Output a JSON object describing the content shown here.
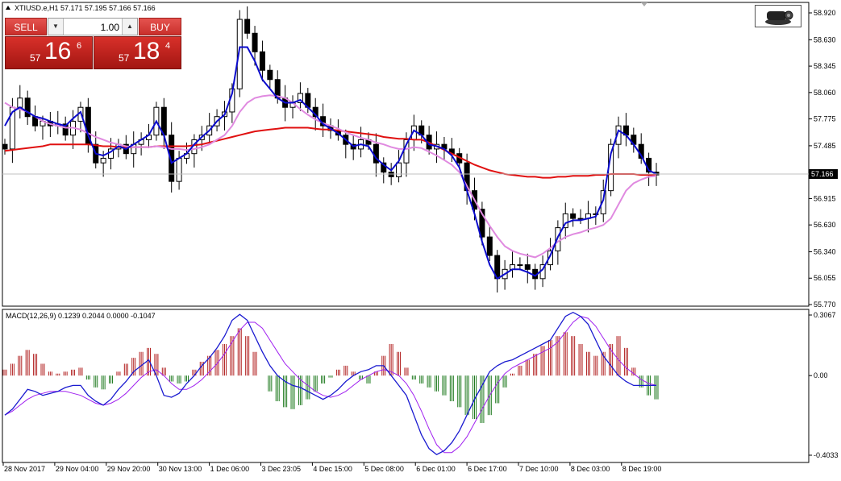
{
  "main_chart": {
    "title": "XTIUSD.e,H1  57.171 57.195 57.166 57.166",
    "y_ticks": [
      "58.920",
      "58.630",
      "58.345",
      "58.060",
      "57.775",
      "57.485",
      "56.915",
      "56.630",
      "56.340",
      "56.055",
      "55.770"
    ],
    "current_price_label": "57.166",
    "colors": {
      "bull": "#ffffff",
      "bear": "#000000",
      "ma_fast": "#0a0acc",
      "ma_slow": "#e08ae0",
      "ma_long": "#e01010",
      "price_line": "#c0c0c0",
      "price_label_bg": "#000000"
    }
  },
  "trade_panel": {
    "sell_label": "SELL",
    "buy_label": "BUY",
    "lot_value": "1.00",
    "lot_down_label": "▼",
    "lot_up_label": "▲",
    "sell_price": {
      "prefix": "57",
      "big": "16",
      "sup": "6"
    },
    "buy_price": {
      "prefix": "57",
      "big": "18",
      "sup": "4"
    }
  },
  "macd": {
    "title": "MACD(12,26,9) 0.1239 0.2044 0.0000 -0.1047",
    "y_ticks": [
      "0.3067",
      "0.00",
      "-0.4033"
    ],
    "colors": {
      "hist_up": "#b22222",
      "hist_down": "#1f7a1f",
      "macd_line": "#1a1ad0",
      "signal_line": "#a020f0"
    }
  },
  "x_axis_labels": [
    "28 Nov 2017",
    "29 Nov 04:00",
    "29 Nov 20:00",
    "30 Nov 13:00",
    "1 Dec 06:00",
    "3 Dec 23:05",
    "4 Dec 15:00",
    "5 Dec 08:00",
    "6 Dec 01:00",
    "6 Dec 17:00",
    "7 Dec 10:00",
    "8 Dec 03:00",
    "8 Dec 19:00"
  ],
  "chart_data": [
    {
      "type": "candlestick",
      "title": "XTIUSD.e,H1  57.171 57.195 57.166 57.166",
      "ylim": [
        55.72,
        59.0
      ],
      "x_labels": [
        "28 Nov 2017",
        "29 Nov 04:00",
        "29 Nov 20:00",
        "30 Nov 13:00",
        "1 Dec 06:00",
        "3 Dec 23:05",
        "4 Dec 15:00",
        "5 Dec 08:00",
        "6 Dec 01:00",
        "6 Dec 17:00",
        "7 Dec 10:00",
        "8 Dec 03:00",
        "8 Dec 19:00"
      ],
      "close_path": [
        57.45,
        57.9,
        58.0,
        57.8,
        57.7,
        57.75,
        57.7,
        57.72,
        57.6,
        57.75,
        57.9,
        57.5,
        57.3,
        57.35,
        57.45,
        57.5,
        57.4,
        57.5,
        57.55,
        57.6,
        57.9,
        57.6,
        57.1,
        57.35,
        57.4,
        57.55,
        57.6,
        57.7,
        57.8,
        57.85,
        58.1,
        58.85,
        58.7,
        58.5,
        58.3,
        58.2,
        58.0,
        57.9,
        57.95,
        58.05,
        57.9,
        57.8,
        57.7,
        57.65,
        57.6,
        57.5,
        57.45,
        57.55,
        57.5,
        57.3,
        57.2,
        57.15,
        57.3,
        57.55,
        57.7,
        57.6,
        57.45,
        57.5,
        57.45,
        57.4,
        57.3,
        57.0,
        56.8,
        56.5,
        56.3,
        56.05,
        56.15,
        56.2,
        56.2,
        56.15,
        56.05,
        56.2,
        56.35,
        56.6,
        56.75,
        56.7,
        56.7,
        56.75,
        56.75,
        57.0,
        57.5,
        57.7,
        57.6,
        57.5,
        57.35,
        57.2,
        57.17
      ],
      "ma_fast": [
        57.7,
        57.85,
        57.9,
        57.85,
        57.8,
        57.78,
        57.75,
        57.72,
        57.7,
        57.78,
        57.85,
        57.6,
        57.4,
        57.38,
        57.42,
        57.48,
        57.45,
        57.5,
        57.55,
        57.6,
        57.75,
        57.6,
        57.3,
        57.35,
        57.4,
        57.5,
        57.58,
        57.65,
        57.75,
        57.82,
        58.05,
        58.55,
        58.55,
        58.4,
        58.2,
        58.1,
        58.0,
        57.95,
        57.95,
        57.98,
        57.9,
        57.82,
        57.72,
        57.67,
        57.62,
        57.55,
        57.48,
        57.5,
        57.48,
        57.35,
        57.28,
        57.22,
        57.32,
        57.5,
        57.65,
        57.6,
        57.5,
        57.48,
        57.45,
        57.38,
        57.25,
        57.0,
        56.75,
        56.45,
        56.2,
        56.05,
        56.1,
        56.15,
        56.15,
        56.12,
        56.08,
        56.15,
        56.3,
        56.5,
        56.65,
        56.68,
        56.68,
        56.7,
        56.72,
        56.9,
        57.4,
        57.65,
        57.6,
        57.5,
        57.38,
        57.22,
        57.18
      ],
      "ma_slow": [
        57.95,
        57.9,
        57.88,
        57.85,
        57.8,
        57.75,
        57.72,
        57.7,
        57.68,
        57.68,
        57.66,
        57.62,
        57.58,
        57.55,
        57.52,
        57.5,
        57.48,
        57.47,
        57.47,
        57.47,
        57.48,
        57.47,
        57.45,
        57.45,
        57.44,
        57.45,
        57.47,
        57.5,
        57.55,
        57.6,
        57.7,
        57.85,
        57.95,
        58.0,
        58.02,
        58.03,
        58.02,
        58.0,
        57.95,
        57.88,
        57.82,
        57.77,
        57.73,
        57.7,
        57.67,
        57.63,
        57.6,
        57.57,
        57.55,
        57.52,
        57.5,
        57.47,
        57.45,
        57.45,
        57.47,
        57.46,
        57.42,
        57.38,
        57.33,
        57.28,
        57.2,
        57.05,
        56.9,
        56.75,
        56.62,
        56.5,
        56.4,
        56.35,
        56.32,
        56.3,
        56.28,
        56.32,
        56.38,
        56.45,
        56.5,
        56.53,
        56.55,
        56.58,
        56.6,
        56.63,
        56.7,
        56.85,
        57.0,
        57.08,
        57.12,
        57.15,
        57.16
      ],
      "ma_long": [
        57.43,
        57.44,
        57.45,
        57.46,
        57.47,
        57.48,
        57.5,
        57.5,
        57.5,
        57.5,
        57.5,
        57.5,
        57.49,
        57.48,
        57.48,
        57.47,
        57.47,
        57.47,
        57.47,
        57.47,
        57.48,
        57.48,
        57.48,
        57.48,
        57.48,
        57.49,
        57.5,
        57.52,
        57.54,
        57.56,
        57.58,
        57.6,
        57.62,
        57.64,
        57.65,
        57.66,
        57.67,
        57.68,
        57.68,
        57.68,
        57.68,
        57.67,
        57.66,
        57.66,
        57.65,
        57.64,
        57.63,
        57.62,
        57.61,
        57.6,
        57.58,
        57.57,
        57.56,
        57.56,
        57.55,
        57.55,
        57.52,
        57.48,
        57.44,
        57.4,
        57.36,
        57.32,
        57.28,
        57.25,
        57.22,
        57.2,
        57.18,
        57.17,
        57.16,
        57.15,
        57.15,
        57.14,
        57.14,
        57.15,
        57.15,
        57.16,
        57.16,
        57.16,
        57.17,
        57.17,
        57.18,
        57.18,
        57.18,
        57.18,
        57.17,
        57.17,
        57.17
      ]
    },
    {
      "type": "bar",
      "title": "MACD(12,26,9) 0.1239 0.2044 0.0000 -0.1047",
      "ylim": [
        -0.4033,
        0.3067
      ],
      "histogram": [
        0.03,
        0.06,
        0.1,
        0.13,
        0.11,
        0.06,
        0.02,
        0.01,
        0.02,
        0.03,
        0.04,
        -0.02,
        -0.06,
        -0.07,
        -0.04,
        0.02,
        0.06,
        0.09,
        0.12,
        0.14,
        0.11,
        0.04,
        -0.03,
        -0.04,
        -0.03,
        0.03,
        0.07,
        0.1,
        0.13,
        0.16,
        0.2,
        0.24,
        0.2,
        0.12,
        0.0,
        -0.08,
        -0.13,
        -0.16,
        -0.17,
        -0.15,
        -0.12,
        -0.08,
        -0.04,
        -0.01,
        0.03,
        0.05,
        0.02,
        -0.02,
        -0.04,
        0.02,
        0.1,
        0.16,
        0.12,
        0.04,
        -0.02,
        -0.04,
        -0.06,
        -0.08,
        -0.1,
        -0.13,
        -0.16,
        -0.2,
        -0.22,
        -0.24,
        -0.2,
        -0.14,
        -0.06,
        0.01,
        0.05,
        0.08,
        0.11,
        0.15,
        0.18,
        0.2,
        0.22,
        0.2,
        0.16,
        0.12,
        0.1,
        0.12,
        0.16,
        0.2,
        0.14,
        0.04,
        -0.06,
        -0.1,
        -0.12
      ],
      "macd_line": [
        -0.2,
        -0.17,
        -0.12,
        -0.07,
        -0.08,
        -0.1,
        -0.09,
        -0.08,
        -0.06,
        -0.05,
        -0.05,
        -0.1,
        -0.13,
        -0.15,
        -0.12,
        -0.07,
        -0.03,
        0.02,
        0.05,
        0.08,
        0.0,
        -0.1,
        -0.11,
        -0.09,
        -0.04,
        0.0,
        0.05,
        0.09,
        0.14,
        0.2,
        0.28,
        0.31,
        0.28,
        0.2,
        0.12,
        0.05,
        0.0,
        -0.03,
        -0.05,
        -0.06,
        -0.08,
        -0.1,
        -0.12,
        -0.1,
        -0.07,
        -0.03,
        0.0,
        0.02,
        0.03,
        0.05,
        0.05,
        0.0,
        -0.05,
        -0.1,
        -0.2,
        -0.3,
        -0.37,
        -0.4,
        -0.38,
        -0.34,
        -0.28,
        -0.2,
        -0.12,
        -0.05,
        0.02,
        0.05,
        0.07,
        0.08,
        0.1,
        0.12,
        0.14,
        0.16,
        0.18,
        0.24,
        0.3,
        0.32,
        0.3,
        0.26,
        0.18,
        0.1,
        0.05,
        0.0,
        -0.03,
        -0.05,
        -0.05,
        -0.05,
        -0.05
      ],
      "signal_line": [
        -0.2,
        -0.18,
        -0.15,
        -0.12,
        -0.1,
        -0.09,
        -0.08,
        -0.08,
        -0.08,
        -0.09,
        -0.1,
        -0.12,
        -0.14,
        -0.15,
        -0.14,
        -0.12,
        -0.09,
        -0.05,
        -0.01,
        0.02,
        0.03,
        0.0,
        -0.04,
        -0.07,
        -0.07,
        -0.05,
        -0.02,
        0.02,
        0.06,
        0.11,
        0.17,
        0.23,
        0.27,
        0.27,
        0.24,
        0.18,
        0.12,
        0.06,
        0.02,
        -0.02,
        -0.05,
        -0.08,
        -0.1,
        -0.11,
        -0.1,
        -0.08,
        -0.05,
        -0.02,
        0.0,
        0.02,
        0.03,
        0.02,
        0.0,
        -0.04,
        -0.1,
        -0.18,
        -0.27,
        -0.35,
        -0.39,
        -0.39,
        -0.36,
        -0.31,
        -0.24,
        -0.17,
        -0.1,
        -0.04,
        0.01,
        0.04,
        0.06,
        0.08,
        0.1,
        0.12,
        0.14,
        0.17,
        0.22,
        0.27,
        0.3,
        0.29,
        0.25,
        0.19,
        0.13,
        0.08,
        0.04,
        0.01,
        -0.02,
        -0.04,
        -0.05
      ]
    }
  ]
}
